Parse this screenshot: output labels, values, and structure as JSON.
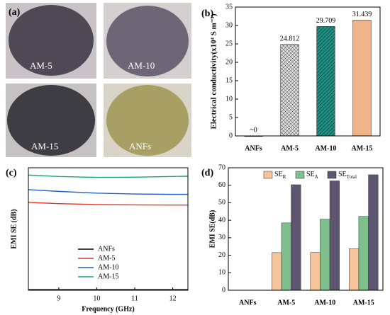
{
  "photos": {
    "label": "(a)",
    "captions": [
      "AM-5",
      "AM-10",
      "AM-15",
      "ANFs"
    ]
  },
  "chart_data": [
    {
      "type": "bar",
      "label": "(b)",
      "ylabel": "Electrical conductivity(x10⁴ S m⁻¹)",
      "categories": [
        "ANFs",
        "AM-5",
        "AM-10",
        "AM-15"
      ],
      "values": [
        0,
        24.812,
        29.709,
        31.439
      ],
      "value_labels": [
        "~0",
        "24.812",
        "29.709",
        "31.439"
      ],
      "colors": [
        "#888888",
        "#e4e4e4",
        "#1f8f84",
        "#f0b489"
      ],
      "hatch": [
        false,
        true,
        true,
        false
      ],
      "ylim": [
        0,
        35
      ],
      "yticks": [
        0,
        5,
        10,
        15,
        20,
        25,
        30,
        35
      ]
    },
    {
      "type": "line",
      "label": "(c)",
      "xlabel": "Frequency (GHz)",
      "ylabel": "EMI SE (dB)",
      "x": [
        8.2,
        9,
        10,
        11,
        12,
        12.4
      ],
      "series": [
        {
          "name": "ANFs",
          "color": "#000000",
          "values": [
            0.3,
            0.3,
            0.3,
            0.3,
            0.3,
            0.3
          ]
        },
        {
          "name": "AM-5",
          "color": "#e8322a",
          "values": [
            50.2,
            49.5,
            49,
            48.8,
            48.7,
            48.7
          ]
        },
        {
          "name": "AM-10",
          "color": "#1f5fd1",
          "values": [
            57.5,
            56.5,
            55.5,
            55,
            54.8,
            54.8
          ]
        },
        {
          "name": "AM-15",
          "color": "#1aa37a",
          "values": [
            65.8,
            65,
            64.5,
            64.6,
            65,
            65.2
          ]
        }
      ],
      "xlim": [
        8.2,
        12.4
      ],
      "xticks": [
        9,
        10,
        11,
        12
      ],
      "ylim": [
        0,
        70
      ]
    },
    {
      "type": "groupbar",
      "label": "(d)",
      "ylabel": "EMI SE(dB)",
      "categories": [
        "ANFs",
        "AM-5",
        "AM-10",
        "AM-15"
      ],
      "series": [
        {
          "name": "SE",
          "subscript": "R",
          "color": "#f5c49b",
          "values": [
            0,
            21.5,
            21.6,
            23.8
          ]
        },
        {
          "name": "SE",
          "subscript": "A",
          "color": "#7fbf8c",
          "values": [
            0,
            38.5,
            40.6,
            42.2
          ]
        },
        {
          "name": "SE",
          "subscript": "Total",
          "color": "#5e5570",
          "values": [
            0,
            60.3,
            62.5,
            66
          ]
        }
      ],
      "ylim": [
        0,
        70
      ],
      "yticks": [
        0,
        10,
        20,
        30,
        40,
        50,
        60,
        70
      ]
    }
  ]
}
